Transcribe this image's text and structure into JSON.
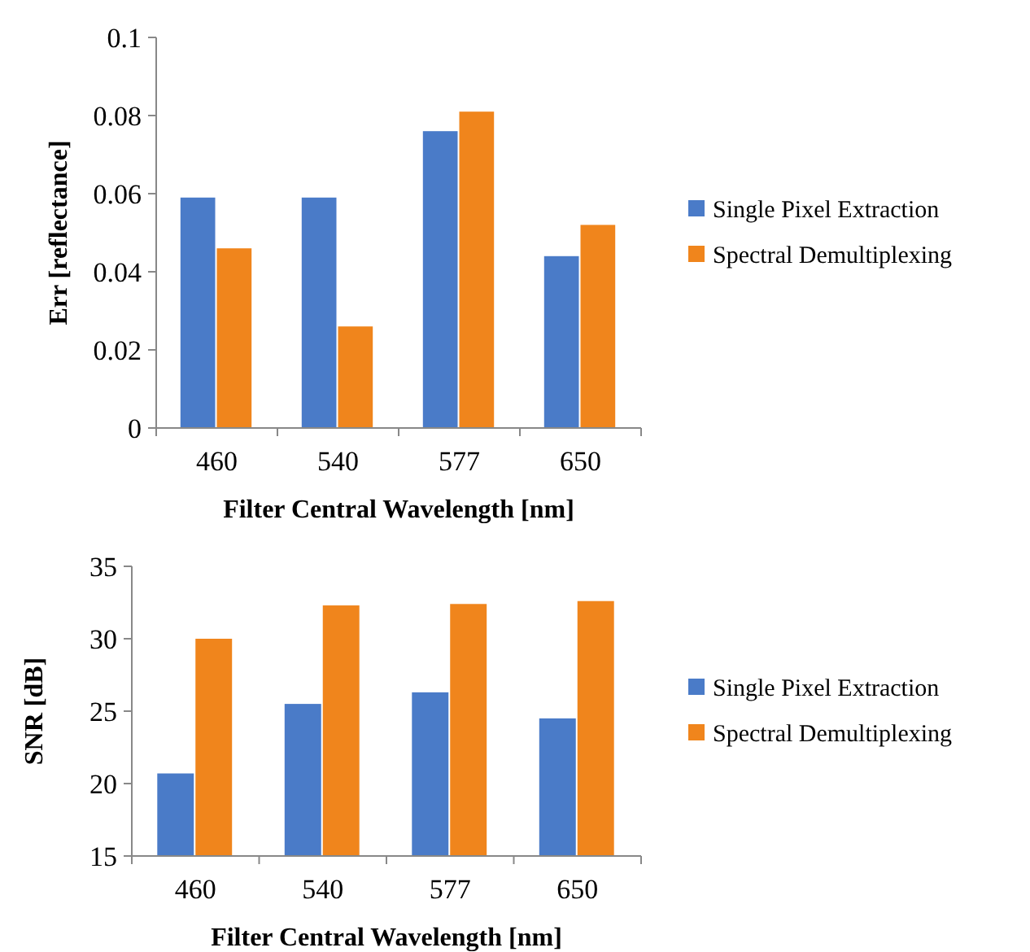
{
  "chart_data": [
    {
      "type": "bar",
      "xlabel": "Filter Central Wavelength [nm]",
      "ylabel": "Err [reflectance]",
      "categories": [
        "460",
        "540",
        "577",
        "650"
      ],
      "series": [
        {
          "name": "Single Pixel Extraction",
          "color": "#4a7bc8",
          "values": [
            0.059,
            0.059,
            0.076,
            0.044
          ]
        },
        {
          "name": "Spectral Demultiplexing",
          "color": "#f0851c",
          "values": [
            0.046,
            0.026,
            0.081,
            0.052
          ]
        }
      ],
      "ylim": [
        0,
        0.1
      ],
      "yticks": [
        0,
        0.02,
        0.04,
        0.06,
        0.08,
        0.1
      ],
      "grid": false,
      "legend": "right"
    },
    {
      "type": "bar",
      "xlabel": "Filter Central Wavelength [nm]",
      "ylabel": "SNR [dB]",
      "categories": [
        "460",
        "540",
        "577",
        "650"
      ],
      "series": [
        {
          "name": "Single Pixel Extraction",
          "color": "#4a7bc8",
          "values": [
            20.7,
            25.5,
            26.3,
            24.5
          ]
        },
        {
          "name": "Spectral Demultiplexing",
          "color": "#f0851c",
          "values": [
            30.0,
            32.3,
            32.4,
            32.6
          ]
        }
      ],
      "ylim": [
        15,
        35
      ],
      "yticks": [
        15,
        20,
        25,
        30,
        35
      ],
      "grid": false,
      "legend": "right"
    }
  ]
}
